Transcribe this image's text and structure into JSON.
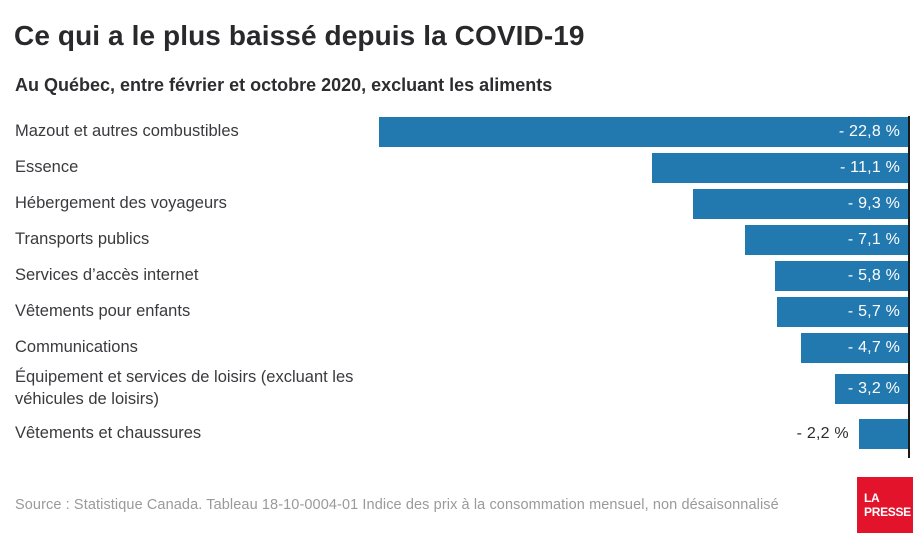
{
  "header": {
    "title": "Ce qui a le plus baissé depuis la COVID-19",
    "subtitle": "Au Québec, entre février et octobre 2020, excluant les aliments"
  },
  "chart_data": {
    "type": "bar",
    "orientation": "horizontal",
    "title": "Ce qui a le plus baissé depuis la COVID-19",
    "subtitle": "Au Québec, entre février et octobre 2020, excluant les aliments",
    "unit": "%",
    "xlim": [
      -22.8,
      0
    ],
    "categories": [
      "Mazout et autres combustibles",
      "Essence",
      "Hébergement des voyageurs",
      "Transports publics",
      "Services d’accès internet",
      "Vêtements pour enfants",
      "Communications",
      "Équipement et services de loisirs (excluant les\nvéhicules de loisirs)",
      "Vêtements et chaussures"
    ],
    "values": [
      -22.8,
      -11.1,
      -9.3,
      -7.1,
      -5.8,
      -5.7,
      -4.7,
      -3.2,
      -2.2
    ],
    "value_labels": [
      "- 22,8 %",
      "- 11,1 %",
      "- 9,3 %",
      "- 7,1 %",
      "- 5,8 %",
      "- 5,7 %",
      "- 4,7 %",
      "- 3,2 %",
      "- 2,2 %"
    ],
    "bar_color": "#2279b0",
    "axis_color": "#1a1a1a",
    "legend": null,
    "grid": false
  },
  "footer": {
    "source": "Source : Statistique Canada. Tableau 18-10-0004-01 Indice des prix à la consommation mensuel, non désaisonnalisé",
    "logo_line1": "LA",
    "logo_line2": "PRESSE",
    "logo_color": "#e3132b"
  }
}
